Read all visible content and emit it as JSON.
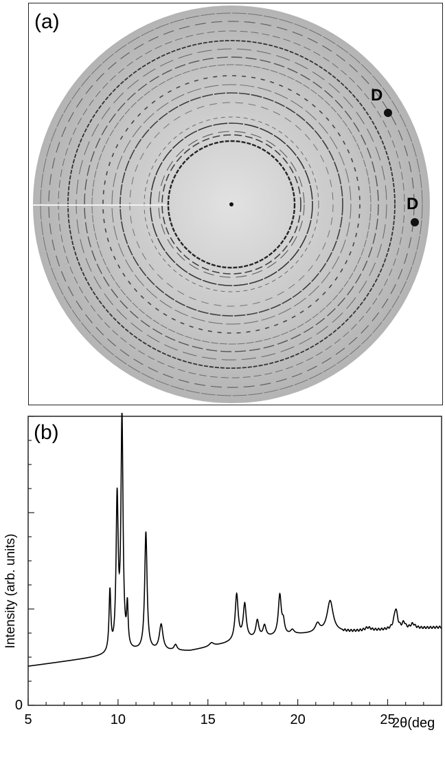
{
  "panel_a": {
    "label": "(a)",
    "markers": [
      "D",
      "D"
    ],
    "description_colors": {
      "background": "#bdbdbd",
      "rings": "#1a1a1a"
    }
  },
  "panel_b": {
    "label": "(b)"
  },
  "chart_data": {
    "type": "line",
    "xlabel": "2θ(deg",
    "ylabel": "Intensity (arb. units)",
    "xlim": [
      5,
      28
    ],
    "ylim": [
      0,
      100
    ],
    "x_ticks": [
      5,
      10,
      15,
      20,
      25
    ],
    "y_ticks": [
      "0"
    ],
    "grid": false,
    "series": [
      {
        "color": "#000000",
        "baseline": [
          [
            5,
            13.5
          ],
          [
            9.3,
            17.0
          ],
          [
            11,
            18.5
          ],
          [
            14,
            18.8
          ],
          [
            17,
            22.5
          ],
          [
            20,
            24.5
          ],
          [
            23,
            25.5
          ],
          [
            26,
            26.5
          ],
          [
            28,
            27.0
          ]
        ],
        "peaks": [
          {
            "x": 9.55,
            "height": 21,
            "width": 0.06
          },
          {
            "x": 9.95,
            "height": 52,
            "width": 0.07
          },
          {
            "x": 10.22,
            "height": 80,
            "width": 0.07
          },
          {
            "x": 10.52,
            "height": 14,
            "width": 0.05
          },
          {
            "x": 11.55,
            "height": 41,
            "width": 0.08
          },
          {
            "x": 12.4,
            "height": 9,
            "width": 0.12
          },
          {
            "x": 13.2,
            "height": 2,
            "width": 0.1
          },
          {
            "x": 15.2,
            "height": 1.2,
            "width": 0.15
          },
          {
            "x": 16.6,
            "height": 16,
            "width": 0.1
          },
          {
            "x": 17.05,
            "height": 12,
            "width": 0.1
          },
          {
            "x": 17.75,
            "height": 6,
            "width": 0.1
          },
          {
            "x": 18.15,
            "height": 4,
            "width": 0.1
          },
          {
            "x": 19.0,
            "height": 14,
            "width": 0.1
          },
          {
            "x": 19.2,
            "height": 4,
            "width": 0.08
          },
          {
            "x": 19.7,
            "height": 1.5,
            "width": 0.12
          },
          {
            "x": 21.1,
            "height": 3,
            "width": 0.15
          },
          {
            "x": 21.8,
            "height": 11,
            "width": 0.2
          },
          {
            "x": 23.9,
            "height": 1,
            "width": 0.2
          },
          {
            "x": 25.45,
            "height": 7,
            "width": 0.12
          },
          {
            "x": 25.9,
            "height": 2,
            "width": 0.1
          },
          {
            "x": 26.4,
            "height": 1.5,
            "width": 0.15
          }
        ]
      }
    ]
  }
}
